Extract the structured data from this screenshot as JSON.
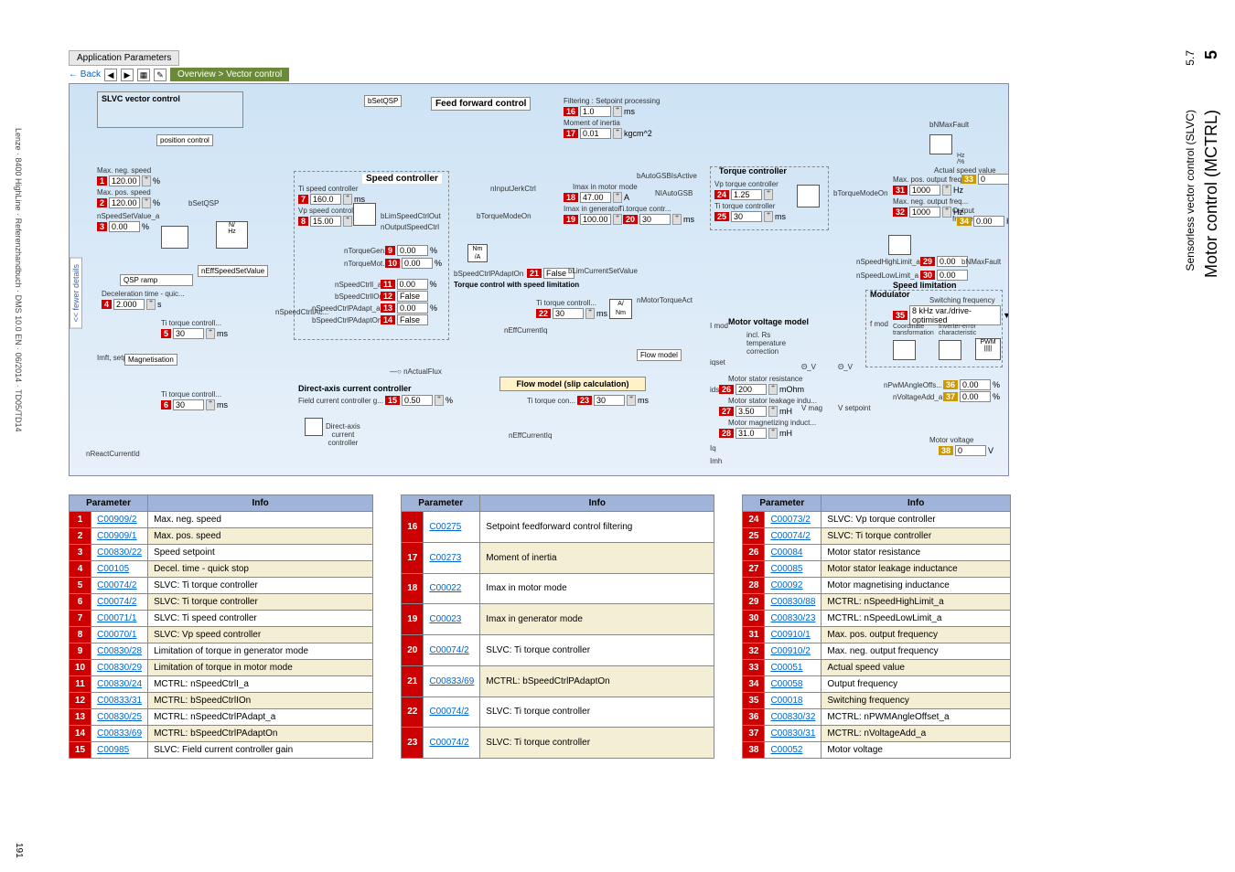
{
  "side": {
    "chapter_num": "5",
    "sub_num": "5.7",
    "title": "Motor control (MCTRL)",
    "subtitle": "Sensorless vector control (SLVC)"
  },
  "footer_left": "Lenze · 8400 HighLine · Referenzhandbuch · DMS 10.0 EN · 06/2014 · TD05/TD14",
  "page_number": "191",
  "toolbar": {
    "tab": "Application Parameters",
    "back": "← Back",
    "breadcrumb": "Overview > Vector control"
  },
  "diagram": {
    "slvc_title": "SLVC vector control",
    "pos_control": "position control",
    "feedforward": "Feed forward control",
    "speed_controller": "Speed controller",
    "torque_controller": "Torque controller",
    "motor_voltage": "Motor voltage model",
    "modulator": "Modulator",
    "flow_model": "Flow model (slip calculation)",
    "flow_model_short": "Flow model",
    "direct_axis": "Direct-axis current controller",
    "direct_axis_sub": "Direct-axis\ncurrent\ncontroller",
    "torque_ctrl_speed": "Torque control with speed\nlimitation",
    "speed_limitation_hdr": "Speed limitation",
    "max_neg": "Max. neg. speed",
    "max_pos": "Max. pos. speed",
    "qsp_ramp": "QSP ramp",
    "decel": "Deceleration time - quic...",
    "ti_torque": "Ti torque controll...",
    "ti_speed": "Ti speed controller",
    "vp_speed": "Vp speed controller",
    "vp_torque": "Vp torque controller",
    "ti_torque2": "Ti torque controller",
    "field_current": "Field current controller g...",
    "switching_freq": "Switching frequency",
    "switching_opt": "8 kHz var./drive-optimised",
    "motor_stator_res": "Motor stator resistance",
    "motor_stator_leak": "Motor stator leakage indu...",
    "motor_mag_induct": "Motor magnetizing induct...",
    "max_pos_out": "Max. pos. output freq...",
    "max_neg_out": "Max. neg. output freq...",
    "output_freq": "Output frequency",
    "actual_speed": "Actual speed value",
    "motor_voltage_lbl": "Motor voltage",
    "filtering": "Filtering : Setpoint processing",
    "moment_inertia": "Moment of inertia",
    "imax_motor": "Imax in motor mode",
    "imax_gen": "Imax in generator ...",
    "ti_torque_contr": "Ti torque contr...",
    "ti_torque_con": "Ti torque con...",
    "ti_torque_controll": "Ti torque controll...",
    "magnetisation": "Magnetisation",
    "incl_rs": "incl. Rs\ntemperature\ncorrection",
    "labels": {
      "bSetQSP": "bSetQSP",
      "nSpeedSetValue_a": "nSpeedSetValue_a",
      "bSetQSP2": "bSetQSP",
      "nEffSpeedSetValue": "nEffSpeedSetValue",
      "nSpeedCtrlIAc": "nSpeedCtrlIAc...",
      "bLimSpeedCtrlOut": "bLimSpeedCtrlOut",
      "nOutputSpeedCtrl": "nOutputSpeedCtrl",
      "nTorqueGen": "nTorqueGen...",
      "nTorqueMot": "nTorqueMot...",
      "nSpeedCtrlI_a": "nSpeedCtrlI_a",
      "bSpeedCtrlIOn": "bSpeedCtrlIOn",
      "nSpeedCtrlPAdapt_a": "nSpeedCtrlPAdapt_a",
      "bSpeedCtrlPAdaptOn": "bSpeedCtrlPAdaptOn",
      "bSpeedCtrlPAdaptOn2": "bSpeedCtrlPAdaptOn",
      "nInputJerkCtrl": "nInputJerkCtrl",
      "bTorqueModeOn": "bTorqueModeOn",
      "bLimCurrentSetValue": "bLimCurrentSetValue",
      "bAutoGSBIsActive": "bAutoGSBIsActive",
      "NIAutoGSB": "NIAutoGSB",
      "nMotorTorqueAct": "nMotorTorqueAct",
      "bTorqueModeOn2": "bTorqueModeOn",
      "nActualFlux": "nActualFlux",
      "nReactCurrentId": "nReactCurrentId",
      "nEffCurrentIq": "nEffCurrentIq",
      "nEffCurrentIq2": "nEffCurrentIq",
      "bNMaxFault": "bNMaxFault",
      "bNMaxFault2": "bNMaxFault",
      "nSpeedHighLimit_a": "nSpeedHighLimit_a",
      "nSpeedLowLimit_a": "nSpeedLowLimit_a",
      "nPwMAngleOffs": "nPwMAngleOffs...",
      "nVoltageAdd_a": "nVoltageAdd_a",
      "Imft_setp": "Imft, setp",
      "iqset": "iqset",
      "idset": "idset",
      "Imod": "I mod",
      "fmod": "f mod",
      "Vmag": "V mag",
      "Vsetpoint": "V setpoint",
      "theta_v": "Θ_V",
      "iq": "Iq",
      "imh": "Imh",
      "coord": "Coordinate\ntransformation",
      "inverter": "Inverter-error\ncharacteristic",
      "pwm": "PWM"
    },
    "fields": {
      "1": "120.00",
      "1u": "%",
      "2": "120.00",
      "2u": "%",
      "3": "0.00",
      "3u": "%",
      "4": "2.000",
      "4u": "s",
      "5": "30",
      "5u": "ms",
      "6": "30",
      "6u": "ms",
      "7": "160.0",
      "7u": "ms",
      "8": "15.00",
      "9": "0.00",
      "9u": "%",
      "10": "0.00",
      "10u": "%",
      "11": "0.00",
      "11u": "%",
      "12": "False",
      "13": "0.00",
      "13u": "%",
      "14": "False",
      "15": "0.50",
      "15u": "%",
      "16": "1.0",
      "16u": "ms",
      "17": "0.01",
      "17u": "kgcm^2",
      "18": "47.00",
      "18u": "A",
      "19": "100.00",
      "19u": "%",
      "20": "30",
      "20u": "ms",
      "21": "False",
      "22": "30",
      "22u": "ms",
      "23": "30",
      "23u": "ms",
      "24": "1.25",
      "25": "30",
      "25u": "ms",
      "26": "200",
      "26u": "mOhm",
      "27": "3.50",
      "27u": "mH",
      "28": "31.0",
      "28u": "mH",
      "29": "0.00",
      "30": "0.00",
      "31": "1000",
      "31u": "Hz",
      "32": "1000",
      "32u": "Hz",
      "33": "0",
      "33u": "rpm",
      "34": "0.00",
      "34u": "Hz",
      "35": "",
      "36": "0.00",
      "36u": "%",
      "37": "0.00",
      "37u": "%",
      "38": "0",
      "38u": "V"
    }
  },
  "tables": [
    {
      "headers": [
        "Parameter",
        "Info"
      ],
      "rows": [
        {
          "n": "1",
          "p": "C00909/2",
          "i": "Max. neg. speed"
        },
        {
          "n": "2",
          "p": "C00909/1",
          "i": "Max. pos. speed"
        },
        {
          "n": "3",
          "p": "C00830/22",
          "i": "Speed setpoint"
        },
        {
          "n": "4",
          "p": "C00105",
          "i": "Decel. time - quick stop"
        },
        {
          "n": "5",
          "p": "C00074/2",
          "i": "SLVC: Ti torque controller"
        },
        {
          "n": "6",
          "p": "C00074/2",
          "i": "SLVC: Ti torque controller"
        },
        {
          "n": "7",
          "p": "C00071/1",
          "i": "SLVC: Ti speed controller"
        },
        {
          "n": "8",
          "p": "C00070/1",
          "i": "SLVC: Vp speed controller"
        },
        {
          "n": "9",
          "p": "C00830/28",
          "i": "Limitation of torque in generator mode"
        },
        {
          "n": "10",
          "p": "C00830/29",
          "i": "Limitation of torque in motor mode"
        },
        {
          "n": "11",
          "p": "C00830/24",
          "i": "MCTRL: nSpeedCtrlI_a"
        },
        {
          "n": "12",
          "p": "C00833/31",
          "i": "MCTRL: bSpeedCtrlIOn"
        },
        {
          "n": "13",
          "p": "C00830/25",
          "i": "MCTRL: nSpeedCtrlPAdapt_a"
        },
        {
          "n": "14",
          "p": "C00833/69",
          "i": "MCTRL: bSpeedCtrlPAdaptOn"
        },
        {
          "n": "15",
          "p": "C00985",
          "i": "SLVC: Field current controller gain"
        }
      ]
    },
    {
      "headers": [
        "Parameter",
        "Info"
      ],
      "rows": [
        {
          "n": "16",
          "p": "C00275",
          "i": "Setpoint feedforward control filtering"
        },
        {
          "n": "17",
          "p": "C00273",
          "i": "Moment of inertia"
        },
        {
          "n": "18",
          "p": "C00022",
          "i": "Imax in motor mode"
        },
        {
          "n": "19",
          "p": "C00023",
          "i": "Imax in generator mode"
        },
        {
          "n": "20",
          "p": "C00074/2",
          "i": "SLVC: Ti torque controller"
        },
        {
          "n": "21",
          "p": "C00833/69",
          "i": "MCTRL: bSpeedCtrlPAdaptOn"
        },
        {
          "n": "22",
          "p": "C00074/2",
          "i": "SLVC: Ti torque controller"
        },
        {
          "n": "23",
          "p": "C00074/2",
          "i": "SLVC: Ti torque controller"
        }
      ]
    },
    {
      "headers": [
        "Parameter",
        "Info"
      ],
      "rows": [
        {
          "n": "24",
          "p": "C00073/2",
          "i": "SLVC: Vp torque controller"
        },
        {
          "n": "25",
          "p": "C00074/2",
          "i": "SLVC: Ti torque controller"
        },
        {
          "n": "26",
          "p": "C00084",
          "i": "Motor stator resistance"
        },
        {
          "n": "27",
          "p": "C00085",
          "i": "Motor stator leakage inductance"
        },
        {
          "n": "28",
          "p": "C00092",
          "i": "Motor magnetising inductance"
        },
        {
          "n": "29",
          "p": "C00830/88",
          "i": "MCTRL: nSpeedHighLimit_a"
        },
        {
          "n": "30",
          "p": "C00830/23",
          "i": "MCTRL: nSpeedLowLimit_a"
        },
        {
          "n": "31",
          "p": "C00910/1",
          "i": "Max. pos. output frequency"
        },
        {
          "n": "32",
          "p": "C00910/2",
          "i": "Max. neg. output frequency"
        },
        {
          "n": "33",
          "p": "C00051",
          "i": "Actual speed value"
        },
        {
          "n": "34",
          "p": "C00058",
          "i": "Output frequency"
        },
        {
          "n": "35",
          "p": "C00018",
          "i": "Switching frequency"
        },
        {
          "n": "36",
          "p": "C00830/32",
          "i": "MCTRL: nPWMAngleOffset_a"
        },
        {
          "n": "37",
          "p": "C00830/31",
          "i": "MCTRL: nVoltageAdd_a"
        },
        {
          "n": "38",
          "p": "C00052",
          "i": "Motor voltage"
        }
      ]
    }
  ]
}
